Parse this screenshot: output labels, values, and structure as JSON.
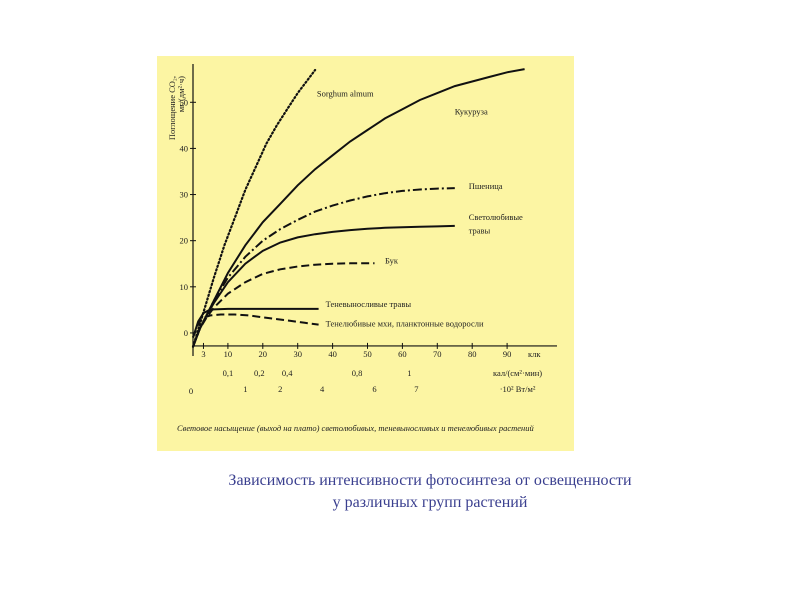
{
  "chart_data": {
    "type": "line",
    "title": "",
    "ylabel_lines": [
      "Поглощение CO₂,",
      "мг/(дм²·ч)"
    ],
    "xlabel_rows": [
      {
        "label": "клк",
        "ticks": [
          {
            "v": 3,
            "t": "3"
          },
          {
            "v": 10,
            "t": "10"
          },
          {
            "v": 20,
            "t": "20"
          },
          {
            "v": 30,
            "t": "30"
          },
          {
            "v": 40,
            "t": "40"
          },
          {
            "v": 50,
            "t": "50"
          },
          {
            "v": 60,
            "t": "60"
          },
          {
            "v": 70,
            "t": "70"
          },
          {
            "v": 80,
            "t": "80"
          },
          {
            "v": 90,
            "t": "90"
          }
        ]
      },
      {
        "label": "кал/(см²·мин)",
        "ticks": [
          {
            "v": 10,
            "t": "0,1"
          },
          {
            "v": 19,
            "t": "0,2"
          },
          {
            "v": 27,
            "t": "0,4"
          },
          {
            "v": 47,
            "t": "0,8"
          },
          {
            "v": 62,
            "t": "1"
          }
        ]
      },
      {
        "label": "·10² Вт/м²",
        "ticks": [
          {
            "v": 15,
            "t": "1"
          },
          {
            "v": 25,
            "t": "2"
          },
          {
            "v": 37,
            "t": "4"
          },
          {
            "v": 52,
            "t": "6"
          },
          {
            "v": 64,
            "t": "7"
          }
        ]
      }
    ],
    "xlim": [
      0,
      100
    ],
    "ylim": [
      -5,
      57
    ],
    "yticks": [
      0,
      10,
      20,
      30,
      40,
      50
    ],
    "x_origin_label": "0",
    "grid": false,
    "series": [
      {
        "name": "Sorghum almum",
        "style": "dotted",
        "x": [
          0,
          2,
          4,
          6,
          9,
          12,
          15,
          18,
          21,
          24,
          27,
          30,
          33,
          35
        ],
        "y": [
          -3,
          2,
          7,
          12,
          19,
          25,
          31,
          36,
          41,
          45,
          48.5,
          52,
          55,
          57
        ]
      },
      {
        "name": "Кукуруза",
        "style": "solid",
        "x": [
          0,
          2,
          4,
          6,
          10,
          15,
          20,
          25,
          30,
          35,
          40,
          45,
          50,
          55,
          60,
          65,
          70,
          75,
          80,
          85,
          90,
          95
        ],
        "y": [
          -3,
          1,
          4,
          7,
          13,
          19,
          24,
          28,
          32,
          35.5,
          38.5,
          41.5,
          44,
          46.5,
          48.5,
          50.5,
          52,
          53.5,
          54.5,
          55.5,
          56.5,
          57.2
        ]
      },
      {
        "name": "Пшеница",
        "style": "dashdot",
        "x": [
          0,
          2,
          4,
          6,
          10,
          15,
          20,
          25,
          30,
          35,
          40,
          45,
          50,
          55,
          60,
          65,
          70,
          75
        ],
        "y": [
          -3,
          1,
          4,
          7,
          12,
          16.5,
          20,
          22.5,
          24.5,
          26.3,
          27.6,
          28.7,
          29.6,
          30.3,
          30.8,
          31.1,
          31.3,
          31.4
        ]
      },
      {
        "name": "Светолюбивые травы",
        "style": "solid",
        "x": [
          0,
          2,
          4,
          6,
          10,
          15,
          20,
          25,
          30,
          35,
          40,
          45,
          50,
          55,
          60,
          65,
          70,
          75
        ],
        "y": [
          -3,
          1,
          4,
          6.5,
          11,
          15,
          17.8,
          19.6,
          20.7,
          21.4,
          21.9,
          22.3,
          22.6,
          22.8,
          22.9,
          23,
          23.1,
          23.2
        ]
      },
      {
        "name": "Бук",
        "style": "dashed",
        "x": [
          0,
          2,
          4,
          6,
          10,
          15,
          20,
          25,
          30,
          35,
          40,
          45,
          50,
          52
        ],
        "y": [
          -3,
          1,
          3.5,
          5.5,
          8.5,
          11,
          12.8,
          13.8,
          14.4,
          14.8,
          15,
          15.1,
          15.1,
          15.1
        ]
      },
      {
        "name": "Теневыносливые травы",
        "style": "solid",
        "x": [
          0,
          1.5,
          3,
          4.5,
          6,
          10,
          20,
          30,
          36
        ],
        "y": [
          -1,
          2.5,
          4.3,
          4.9,
          5.1,
          5.2,
          5.2,
          5.2,
          5.2
        ]
      },
      {
        "name": "Тенелюбивые мхи, планктонные водоросли",
        "style": "dashed",
        "x": [
          0,
          1.5,
          3,
          5,
          8,
          12,
          16,
          20,
          24,
          28,
          32,
          36
        ],
        "y": [
          -1,
          2,
          3.3,
          3.8,
          4,
          4,
          3.8,
          3.4,
          3,
          2.6,
          2.2,
          1.8
        ]
      }
    ],
    "series_labels": [
      {
        "text": "Sorghum almum",
        "x": 35.5,
        "y": 51.3
      },
      {
        "text": "Кукуруза",
        "x": 75,
        "y": 47.4
      },
      {
        "text": "Пшеница",
        "x": 79,
        "y": 31.2
      },
      {
        "text": "Светолюбивые",
        "x": 79,
        "y": 24.5
      },
      {
        "text": "травы",
        "x": 79,
        "y": 21.6
      },
      {
        "text": "Бук",
        "x": 55,
        "y": 15
      },
      {
        "text": "Теневыносливые травы",
        "x": 38,
        "y": 5.6
      },
      {
        "text": "Тенелюбивые мхи, планктонные водоросли",
        "x": 38,
        "y": 1.4
      }
    ]
  },
  "footnote": "Световое насыщение (выход на плато) светолюбивых, теневыносливых и тенелюбивых растений",
  "caption_lines": [
    "Зависимость интенсивности фотосинтеза от освещенности",
    "у различных групп растений"
  ]
}
